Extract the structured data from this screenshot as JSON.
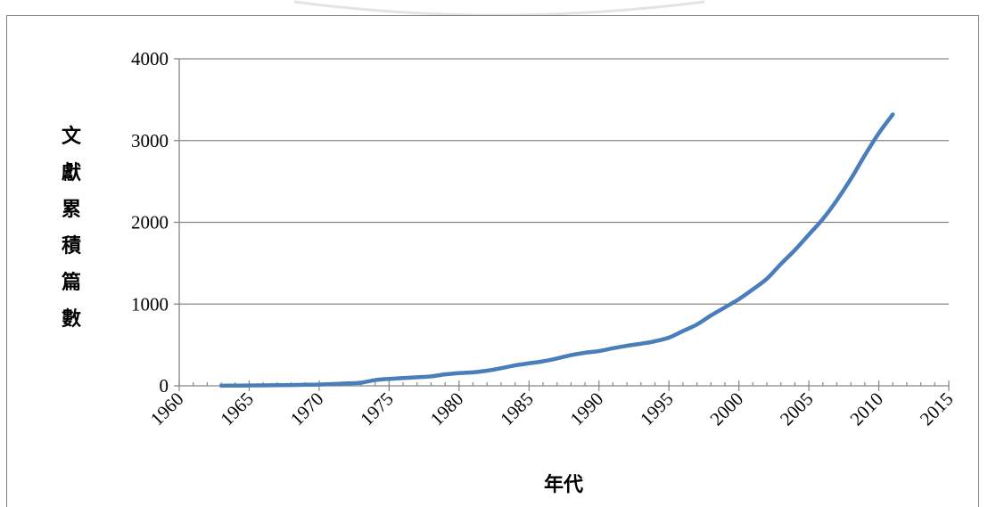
{
  "chart_data": {
    "type": "line",
    "title": "",
    "xlabel": "年代",
    "ylabel": "文獻累積篇數",
    "xlim": [
      1960,
      2015
    ],
    "ylim": [
      0,
      4000
    ],
    "x_ticks": [
      "1960",
      "1965",
      "1970",
      "1975",
      "1980",
      "1985",
      "1990",
      "1995",
      "2000",
      "2005",
      "2010",
      "2015"
    ],
    "y_ticks": [
      "0",
      "1000",
      "2000",
      "3000",
      "4000"
    ],
    "grid": true,
    "legend": "none",
    "series": [
      {
        "color": "#4a7ebb",
        "x": [
          1963,
          1964,
          1965,
          1966,
          1967,
          1968,
          1969,
          1970,
          1971,
          1972,
          1973,
          1974,
          1975,
          1976,
          1977,
          1978,
          1979,
          1980,
          1981,
          1982,
          1983,
          1984,
          1985,
          1986,
          1987,
          1988,
          1989,
          1990,
          1991,
          1992,
          1993,
          1994,
          1995,
          1996,
          1997,
          1998,
          1999,
          2000,
          2001,
          2002,
          2003,
          2004,
          2005,
          2006,
          2007,
          2008,
          2009,
          2010,
          2011
        ],
        "y": [
          2,
          3,
          4,
          6,
          8,
          10,
          13,
          15,
          22,
          30,
          38,
          70,
          85,
          95,
          105,
          115,
          140,
          155,
          165,
          185,
          215,
          250,
          275,
          300,
          335,
          375,
          405,
          425,
          460,
          490,
          515,
          545,
          590,
          670,
          750,
          860,
          960,
          1060,
          1180,
          1310,
          1490,
          1660,
          1850,
          2040,
          2270,
          2530,
          2820,
          3090,
          3320
        ]
      }
    ]
  }
}
